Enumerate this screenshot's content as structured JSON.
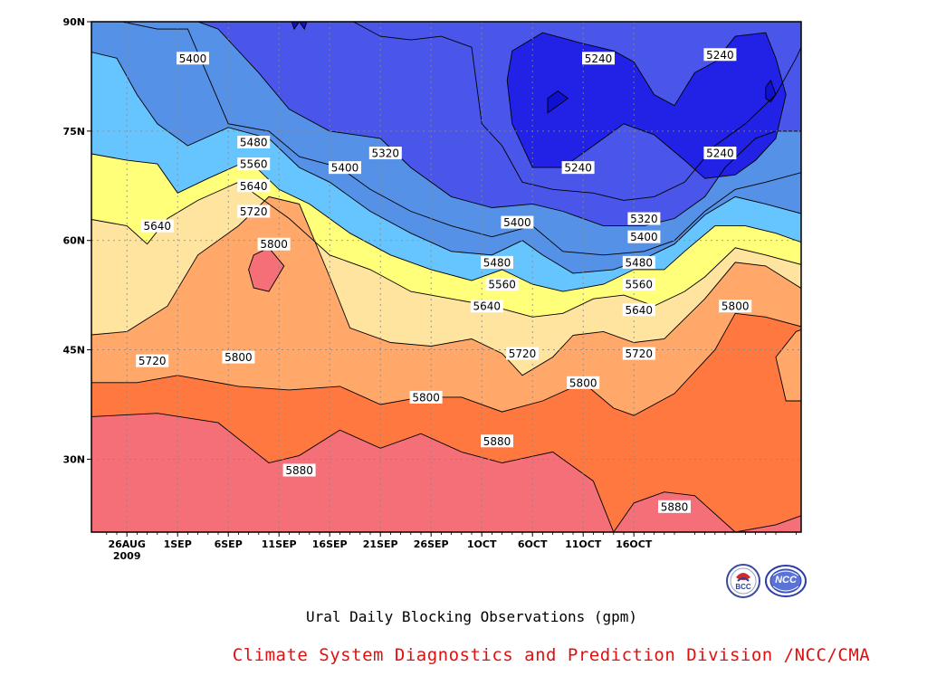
{
  "chart_data": {
    "type": "contour",
    "title": "Ural Daily Blocking Observations (gpm)",
    "variable_unit": "gpm",
    "x_ticks": [
      "26AUG\n2009",
      "1SEP",
      "6SEP",
      "11SEP",
      "16SEP",
      "21SEP",
      "26SEP",
      "1OCT",
      "6OCT",
      "11OCT",
      "16OCT"
    ],
    "y_ticks": [
      "30N",
      "45N",
      "60N",
      "75N",
      "90N"
    ],
    "ylim": [
      20,
      90
    ],
    "contour_levels": [
      5240,
      5320,
      5400,
      5480,
      5560,
      5640,
      5720,
      5800,
      5880
    ],
    "band_colors": {
      "below_5240": "#1010d0",
      "5240_5320": "#2222e6",
      "5320_5400": "#4a56ea",
      "5400_5480": "#5591e6",
      "5480_5560": "#66c4ff",
      "5560_5640": "#ffff7a",
      "5640_5720": "#ffe4a0",
      "5720_5800": "#ffa86a",
      "5800_5880": "#ff7840",
      "5880_5960": "#f46f78",
      "above_5960": "#f0344a"
    },
    "contour_labels": [
      {
        "value": "5400",
        "day": 6.5,
        "lat": 85
      },
      {
        "value": "5240",
        "day": 46.5,
        "lat": 85
      },
      {
        "value": "5240",
        "day": 58.5,
        "lat": 85.5
      },
      {
        "value": "5480",
        "day": 12.5,
        "lat": 73.5
      },
      {
        "value": "5320",
        "day": 25.5,
        "lat": 72
      },
      {
        "value": "5400",
        "day": 21.5,
        "lat": 70
      },
      {
        "value": "5560",
        "day": 12.5,
        "lat": 70.5
      },
      {
        "value": "5640",
        "day": 12.5,
        "lat": 67.5
      },
      {
        "value": "5240",
        "day": 44.5,
        "lat": 70
      },
      {
        "value": "5240",
        "day": 58.5,
        "lat": 72
      },
      {
        "value": "5720",
        "day": 12.5,
        "lat": 64
      },
      {
        "value": "5640",
        "day": 3,
        "lat": 62
      },
      {
        "value": "5400",
        "day": 38.5,
        "lat": 62.5
      },
      {
        "value": "5320",
        "day": 51,
        "lat": 63
      },
      {
        "value": "5800",
        "day": 14.5,
        "lat": 59.5
      },
      {
        "value": "5400",
        "day": 51,
        "lat": 60.5
      },
      {
        "value": "5480",
        "day": 36.5,
        "lat": 57
      },
      {
        "value": "5480",
        "day": 50.5,
        "lat": 57
      },
      {
        "value": "5560",
        "day": 37,
        "lat": 54
      },
      {
        "value": "5560",
        "day": 50.5,
        "lat": 54
      },
      {
        "value": "5640",
        "day": 35.5,
        "lat": 51
      },
      {
        "value": "5640",
        "day": 50.5,
        "lat": 50.5
      },
      {
        "value": "5800",
        "day": 60,
        "lat": 51
      },
      {
        "value": "5720",
        "day": 2.5,
        "lat": 43.5
      },
      {
        "value": "5800",
        "day": 11,
        "lat": 44
      },
      {
        "value": "5720",
        "day": 39,
        "lat": 44.5
      },
      {
        "value": "5720",
        "day": 50.5,
        "lat": 44.5
      },
      {
        "value": "5800",
        "day": 29.5,
        "lat": 38.5
      },
      {
        "value": "5800",
        "day": 45,
        "lat": 40.5
      },
      {
        "value": "5880",
        "day": 36.5,
        "lat": 32.5
      },
      {
        "value": "5880",
        "day": 17,
        "lat": 28.5
      },
      {
        "value": "5880",
        "day": 54,
        "lat": 23.5
      }
    ]
  },
  "caption": {
    "title": "Ural Daily Blocking Observations (gpm)",
    "credit": "Climate System Diagnostics and Prediction Division /NCC/CMA"
  },
  "logos": {
    "bcc": {
      "text": "BCC",
      "icon": "bcc-logo-icon"
    },
    "ncc": {
      "text": "NCC",
      "icon": "ncc-logo-icon"
    }
  },
  "colors": {
    "credit": "#e01010",
    "frame": "#000000",
    "grid": "#888888"
  }
}
